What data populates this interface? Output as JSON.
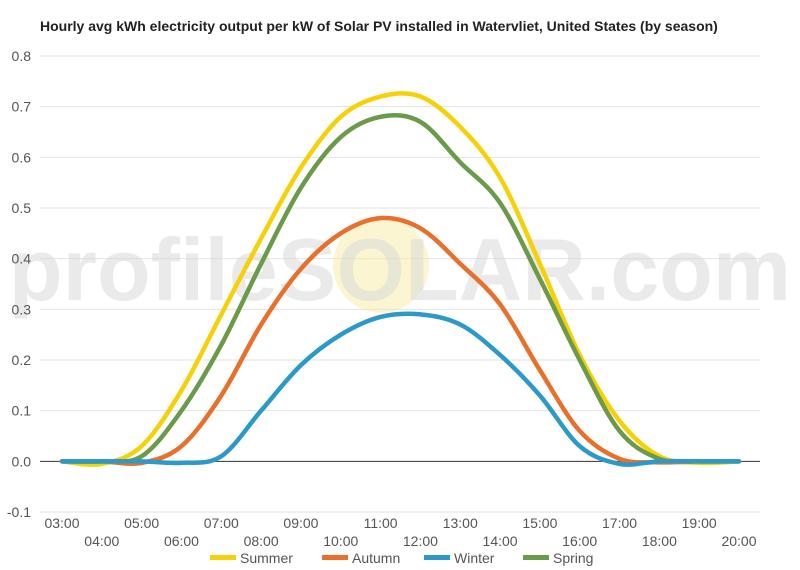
{
  "chart_data": {
    "type": "line",
    "title": "Hourly avg kWh electricity output per kW of Solar PV installed in Watervliet, United States (by season)",
    "xlabel": "",
    "ylabel": "",
    "ylim": [
      -0.1,
      0.8
    ],
    "yticks": [
      "-0.1",
      "0.0",
      "0.1",
      "0.2",
      "0.3",
      "0.4",
      "0.5",
      "0.6",
      "0.7",
      "0.8"
    ],
    "categories": [
      "03:00",
      "04:00",
      "05:00",
      "06:00",
      "07:00",
      "08:00",
      "09:00",
      "10:00",
      "11:00",
      "12:00",
      "13:00",
      "14:00",
      "15:00",
      "16:00",
      "17:00",
      "18:00",
      "19:00",
      "20:00"
    ],
    "grid": true,
    "legend_position": "bottom",
    "series": [
      {
        "name": "Summer",
        "color": "#f7d108",
        "values": [
          0.0,
          -0.005,
          0.03,
          0.14,
          0.29,
          0.44,
          0.58,
          0.68,
          0.72,
          0.72,
          0.66,
          0.56,
          0.39,
          0.21,
          0.08,
          0.01,
          -0.003,
          0.0
        ]
      },
      {
        "name": "Autumn",
        "color": "#e8702a",
        "values": [
          0.0,
          0.0,
          -0.003,
          0.03,
          0.13,
          0.27,
          0.38,
          0.45,
          0.48,
          0.46,
          0.39,
          0.31,
          0.18,
          0.06,
          0.005,
          -0.002,
          0.0,
          0.0
        ]
      },
      {
        "name": "Winter",
        "color": "#2c9ac9",
        "values": [
          0.0,
          0.0,
          0.0,
          -0.003,
          0.01,
          0.1,
          0.19,
          0.25,
          0.285,
          0.29,
          0.27,
          0.21,
          0.13,
          0.03,
          -0.005,
          0.0,
          0.0,
          0.0
        ]
      },
      {
        "name": "Spring",
        "color": "#6b9a4a",
        "values": [
          0.0,
          0.0,
          0.01,
          0.1,
          0.23,
          0.39,
          0.54,
          0.64,
          0.68,
          0.67,
          0.59,
          0.51,
          0.36,
          0.2,
          0.06,
          0.005,
          0.0,
          0.0
        ]
      }
    ],
    "watermark": "profileSOLAR.com"
  }
}
